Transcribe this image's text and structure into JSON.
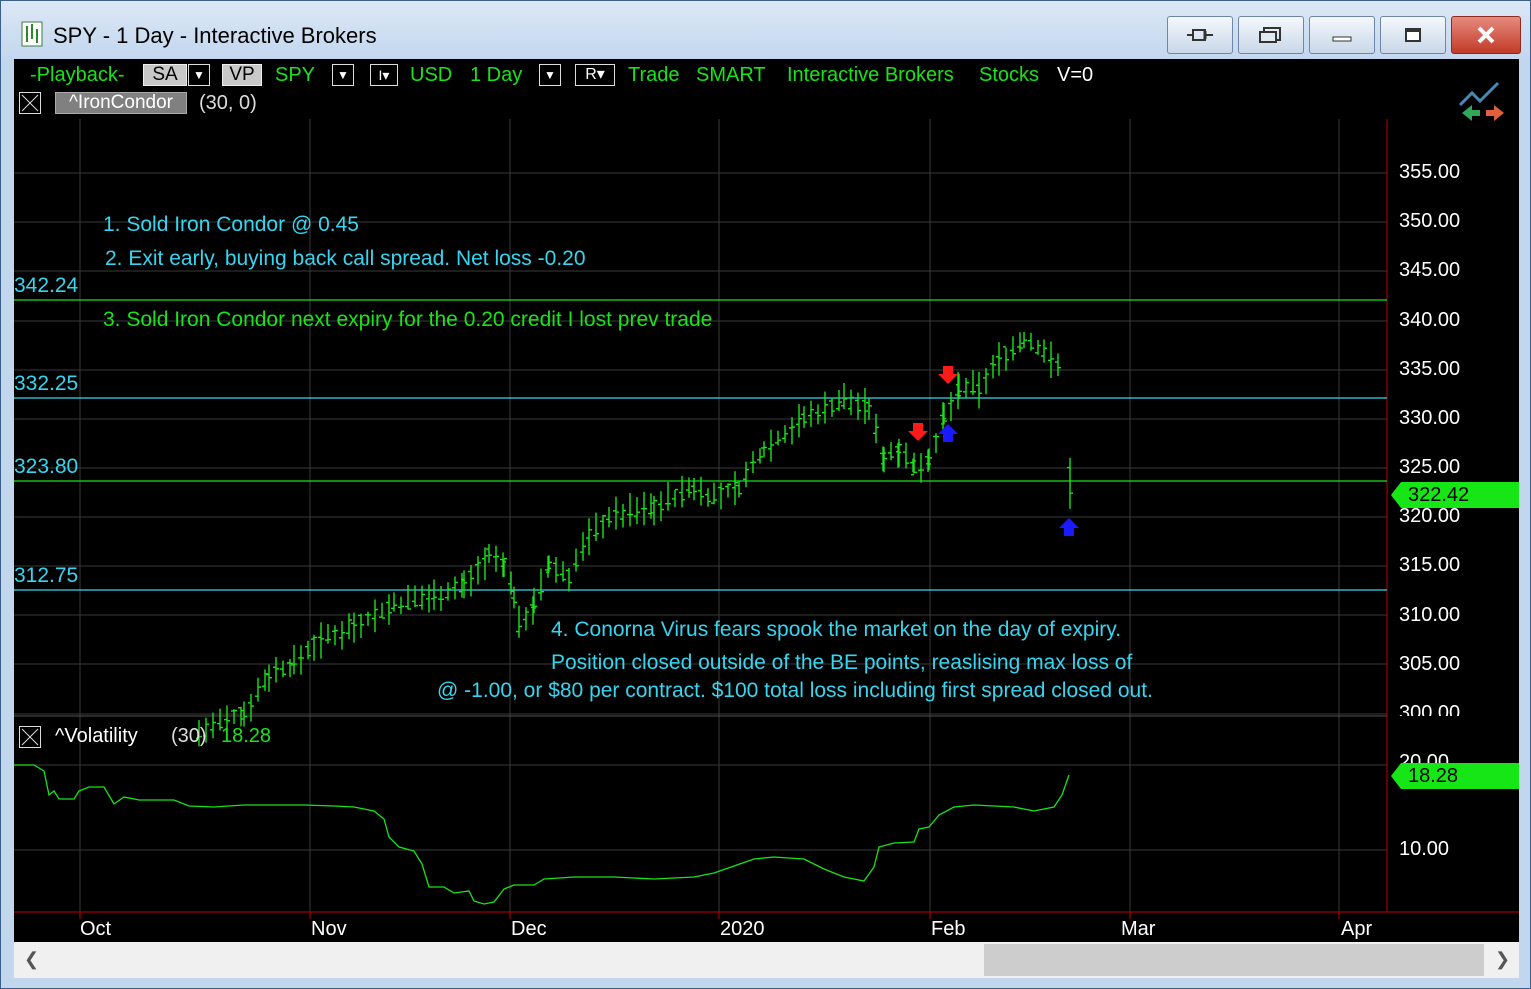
{
  "window": {
    "title": "SPY - 1 Day - Interactive Brokers"
  },
  "toolbar": {
    "playback": "-Playback-",
    "sa": "SA",
    "vp": "VP",
    "symbol": "SPY",
    "i_box": "I",
    "currency": "USD",
    "interval": "1 Day",
    "r_box": "R",
    "trade": "Trade",
    "route": "SMART",
    "broker": "Interactive Brokers",
    "asset": "Stocks",
    "volume": "V=0"
  },
  "indicators": {
    "main_name": "^IronCondor",
    "main_params": "(30,  0)",
    "vol_name": "^Volatility",
    "vol_params": "(30)",
    "vol_value": "18.28"
  },
  "price_axis": {
    "ticks": [
      "355.00",
      "350.00",
      "345.00",
      "340.00",
      "335.00",
      "330.00",
      "325.00",
      "320.00",
      "315.00",
      "310.00",
      "305.00",
      "300.00"
    ],
    "last_price": "322.42"
  },
  "vol_axis": {
    "ticks": [
      "20.00",
      "10.00"
    ],
    "last_value": "18.28"
  },
  "time_axis": {
    "labels": [
      "Oct",
      "Nov",
      "Dec",
      "2020",
      "Feb",
      "Mar",
      "Apr"
    ]
  },
  "levels": [
    "342.24",
    "332.25",
    "323.80",
    "312.75"
  ],
  "notes": {
    "n1": "1. Sold Iron Condor @ 0.45",
    "n2": "2. Exit early, buying back call spread. Net loss -0.20",
    "n3": "3. Sold Iron Condor next expiry for the 0.20 credit I lost prev trade",
    "n4a": "4. Conorna Virus fears spook the market on the day of expiry.",
    "n4b": "Position closed outside of the BE points, reaslising max loss of",
    "n4c": "@ -1.00, or $80 per contract. $100 total loss including first spread closed out."
  },
  "colors": {
    "bars": "#19e319",
    "level_cyan": "#36d5f0",
    "level_green": "#19e319",
    "sell_arrow": "#ff1a1a",
    "buy_arrow": "#1a1aff",
    "axis_red": "#c00000"
  },
  "chart_data": {
    "type": "ohlc",
    "series": [
      {
        "name": "SPY",
        "x": [
          "2019-10-01",
          "2019-11-01",
          "2019-12-02",
          "2020-01-02",
          "2020-02-03",
          "2020-03-02",
          "2020-04-01"
        ],
        "close_path": [
          297,
          306,
          311,
          315,
          322,
          326,
          332,
          328,
          337,
          337,
          322.42
        ]
      },
      {
        "name": "^Volatility",
        "last": 18.28
      }
    ],
    "levels": [
      342.24,
      332.25,
      323.8,
      312.75
    ],
    "price_range": [
      300,
      355
    ],
    "vol_range": [
      10,
      20
    ]
  }
}
